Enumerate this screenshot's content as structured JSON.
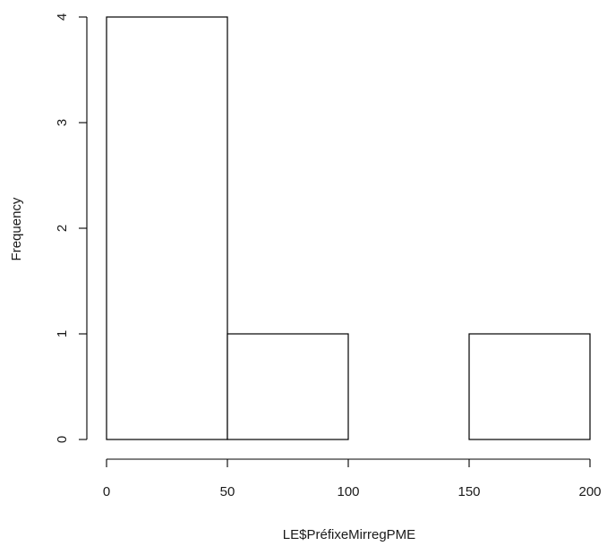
{
  "chart_data": {
    "type": "bar",
    "title": "",
    "xlabel": "LE$PréfixeMirregPME",
    "ylabel": "Frequency",
    "bins": [
      {
        "x0": 0,
        "x1": 50,
        "count": 4
      },
      {
        "x0": 50,
        "x1": 100,
        "count": 1
      },
      {
        "x0": 100,
        "x1": 150,
        "count": 0
      },
      {
        "x0": 150,
        "x1": 200,
        "count": 1
      }
    ],
    "xlim": [
      0,
      200
    ],
    "ylim": [
      0,
      4
    ],
    "x_ticks": [
      0,
      50,
      100,
      150,
      200
    ],
    "y_ticks": [
      0,
      1,
      2,
      3,
      4
    ],
    "grid": false,
    "colors": {
      "bar_fill": "#ffffff",
      "bar_stroke": "#000000",
      "axis": "#000000",
      "text": "#1a1a1a"
    }
  }
}
